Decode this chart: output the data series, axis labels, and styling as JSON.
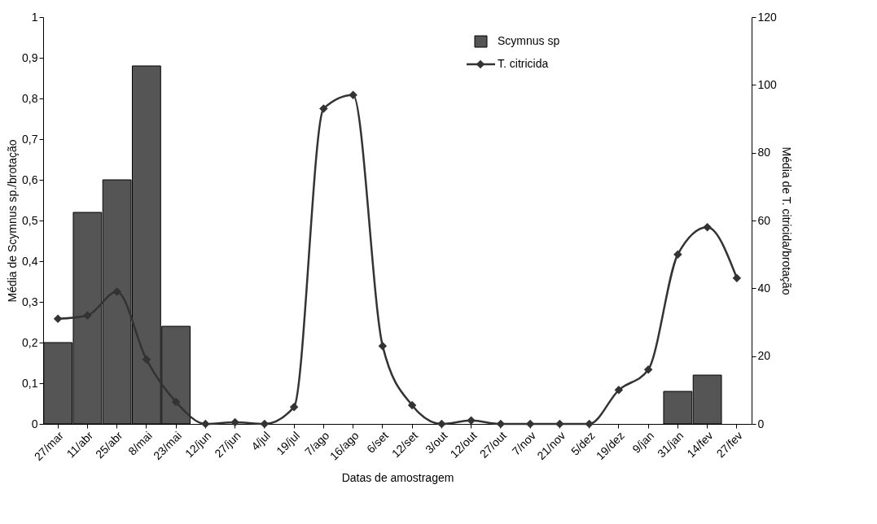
{
  "chart_data": {
    "type": "bar",
    "xlabel": "Datas de amostragem",
    "ylabel": "Média de Scymnus sp./brotação",
    "y2label": "Média de T. citricida/brotação",
    "categories": [
      "27/mar",
      "11/abr",
      "25/abr",
      "8/mai",
      "23/mai",
      "12/jun",
      "27/jun",
      "4/jul",
      "19/jul",
      "7/ago",
      "16/ago",
      "6/set",
      "12/set",
      "3/out",
      "12/out",
      "27/out",
      "7/nov",
      "21/nov",
      "5/dez",
      "19/dez",
      "9/jan",
      "31/jan",
      "14/fev",
      "27/fev"
    ],
    "series": [
      {
        "name": "Scymnus sp",
        "color": "#555555",
        "values": [
          0.2,
          0.52,
          0.6,
          0.88,
          0.24,
          null,
          null,
          null,
          null,
          null,
          null,
          null,
          null,
          null,
          null,
          null,
          null,
          null,
          null,
          null,
          null,
          0.08,
          0.12,
          null
        ]
      },
      {
        "name": "T. citricida",
        "type": "line",
        "axis": "y2",
        "color": "#333333",
        "values": [
          31,
          32,
          39,
          19,
          6.5,
          0,
          0.5,
          0,
          5,
          93,
          97,
          23,
          5.5,
          0,
          1,
          0,
          0,
          0,
          0,
          10,
          16,
          50,
          58,
          43
        ]
      }
    ],
    "ylim": [
      0,
      1
    ],
    "yticks": [
      0,
      {
        "value": 0.1,
        "label": "0,1"
      },
      {
        "value": 0.2,
        "label": "0,2"
      },
      {
        "value": 0.3,
        "label": "0,3"
      },
      {
        "value": 0.4,
        "label": "0,4"
      },
      {
        "value": 0.5,
        "label": "0,5"
      },
      {
        "value": 0.6,
        "label": "0,6"
      },
      {
        "value": 0.7,
        "label": "0,7"
      },
      {
        "value": 0.8,
        "label": "0,8"
      },
      {
        "value": 0.9,
        "label": "0,9"
      },
      1
    ],
    "y2lim": [
      0,
      120
    ],
    "y2ticks": [
      0,
      20,
      40,
      60,
      80,
      100,
      120
    ],
    "grid": false,
    "legend": "top right",
    "marker": "diamond",
    "line_style": "solid"
  }
}
